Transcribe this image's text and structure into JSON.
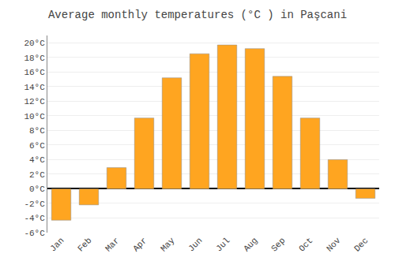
{
  "chart_data": {
    "type": "bar",
    "title": "Average monthly temperatures (°C ) in Paşcani",
    "categories": [
      "Jan",
      "Feb",
      "Mar",
      "Apr",
      "May",
      "Jun",
      "Jul",
      "Aug",
      "Sep",
      "Oct",
      "Nov",
      "Dec"
    ],
    "values": [
      -4.3,
      -2.2,
      2.9,
      9.7,
      15.2,
      18.5,
      19.7,
      19.2,
      15.4,
      9.7,
      4.0,
      -1.3
    ],
    "color": "#FFA520",
    "ylim": [
      -6,
      21
    ],
    "yticks": [
      {
        "value": -6,
        "label": "-6°C"
      },
      {
        "value": -4,
        "label": "-4°C"
      },
      {
        "value": -2,
        "label": "-2°C"
      },
      {
        "value": 0,
        "label": "0°C"
      },
      {
        "value": 2,
        "label": "2°C"
      },
      {
        "value": 4,
        "label": "4°C"
      },
      {
        "value": 6,
        "label": "6°C"
      },
      {
        "value": 8,
        "label": "8°C"
      },
      {
        "value": 10,
        "label": "10°C"
      },
      {
        "value": 12,
        "label": "12°C"
      },
      {
        "value": 14,
        "label": "14°C"
      },
      {
        "value": 16,
        "label": "16°C"
      },
      {
        "value": 18,
        "label": "18°C"
      },
      {
        "value": 20,
        "label": "20°C"
      }
    ],
    "grid": true
  }
}
